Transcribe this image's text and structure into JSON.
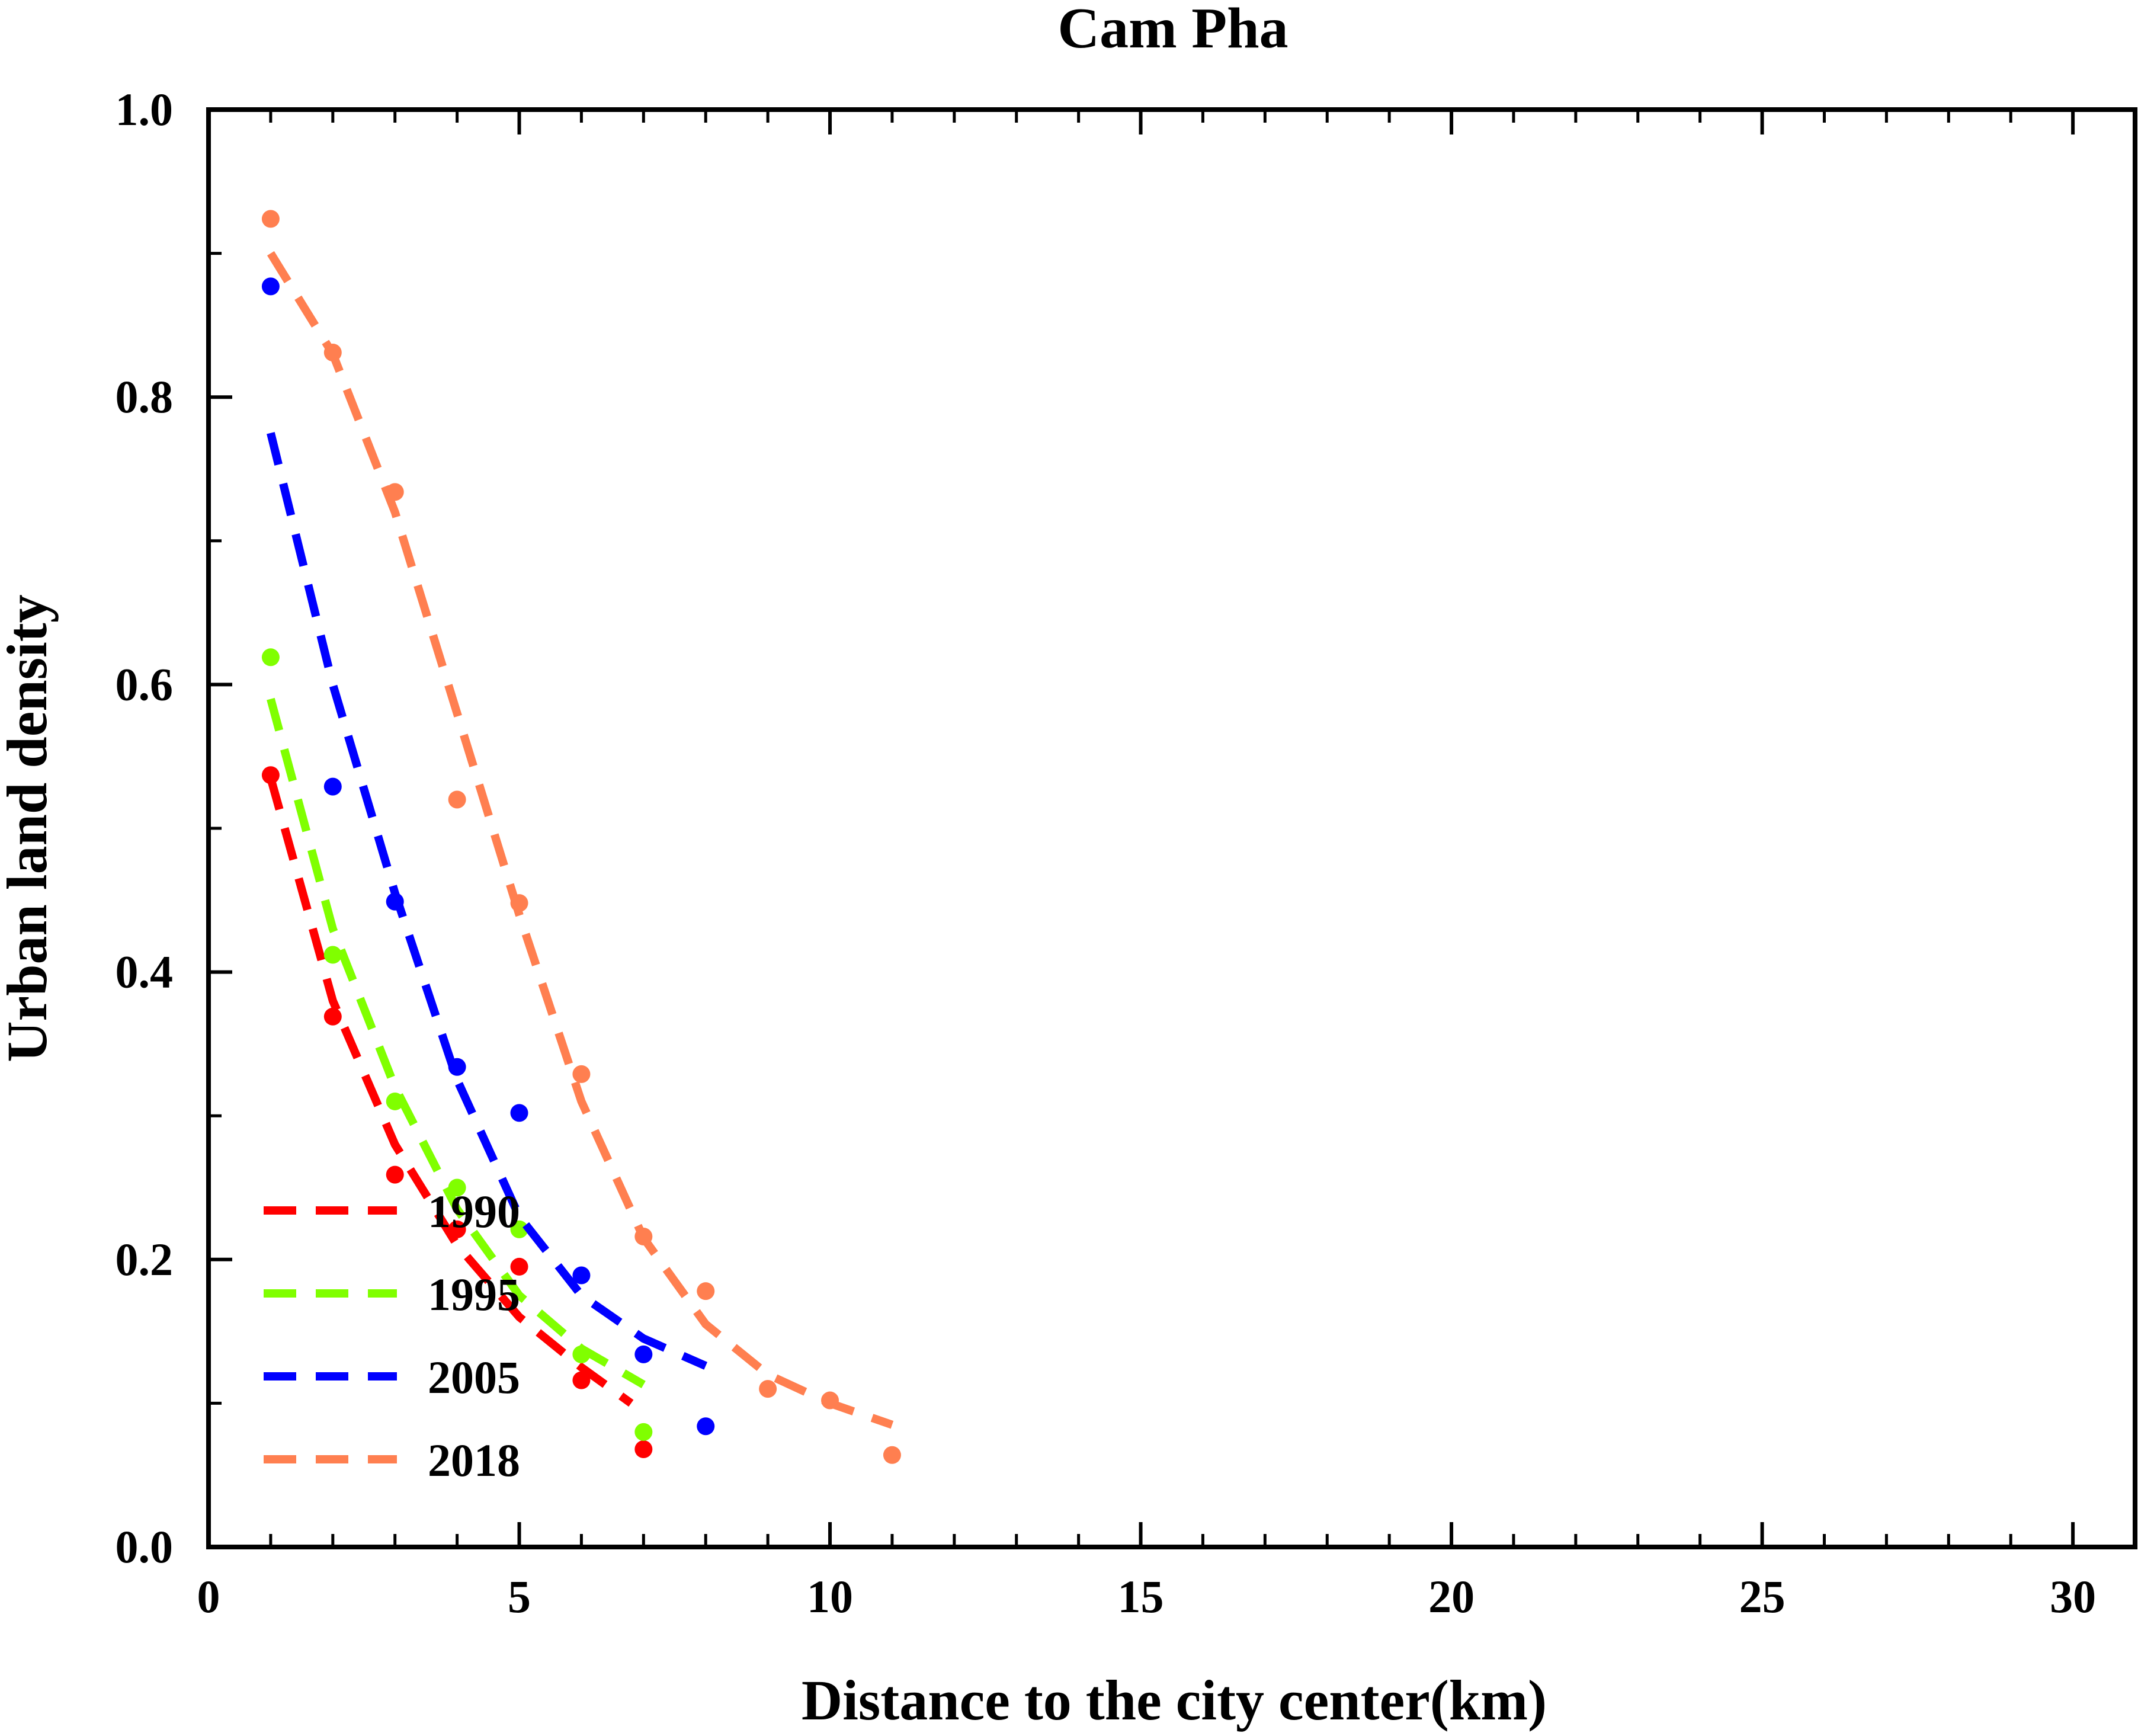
{
  "chart_data": {
    "type": "scatter",
    "title": "Cam Pha",
    "xlabel": "Distance to the city center(km)",
    "ylabel": "Urban land density",
    "xlim": [
      0,
      31
    ],
    "ylim": [
      0.0,
      1.0
    ],
    "xticks": [
      "0",
      "5",
      "10",
      "15",
      "20",
      "25",
      "30"
    ],
    "yticks": [
      "0.0",
      "0.2",
      "0.4",
      "0.6",
      "0.8",
      "1.0"
    ],
    "grid": false,
    "legend_position": "bottom-left",
    "series": [
      {
        "name": "1990",
        "color": "#ff0000",
        "points": {
          "x": [
            1,
            2,
            3,
            4,
            5,
            6,
            7
          ],
          "y": [
            0.537,
            0.369,
            0.259,
            0.221,
            0.195,
            0.116,
            0.068
          ]
        },
        "fit": {
          "x": [
            1,
            2,
            3,
            4,
            5,
            6,
            6.8
          ],
          "y": [
            0.535,
            0.38,
            0.28,
            0.21,
            0.16,
            0.125,
            0.1
          ]
        }
      },
      {
        "name": "1995",
        "color": "#80ff00",
        "points": {
          "x": [
            1,
            2,
            3,
            4,
            5,
            6,
            7
          ],
          "y": [
            0.619,
            0.412,
            0.31,
            0.25,
            0.221,
            0.134,
            0.08
          ]
        },
        "fit": {
          "x": [
            1,
            2,
            3,
            4,
            5,
            6,
            7
          ],
          "y": [
            0.59,
            0.43,
            0.32,
            0.235,
            0.175,
            0.138,
            0.113
          ]
        }
      },
      {
        "name": "2005",
        "color": "#0000ff",
        "points": {
          "x": [
            1,
            2,
            3,
            4,
            5,
            6,
            7,
            8
          ],
          "y": [
            0.877,
            0.529,
            0.449,
            0.334,
            0.302,
            0.189,
            0.134,
            0.084
          ]
        },
        "fit": {
          "x": [
            1,
            2,
            3,
            4,
            5,
            6,
            7,
            8
          ],
          "y": [
            0.775,
            0.6,
            0.455,
            0.325,
            0.23,
            0.175,
            0.145,
            0.126
          ]
        }
      },
      {
        "name": "2018",
        "color": "#ff7f50",
        "points": {
          "x": [
            1,
            2,
            3,
            4,
            5,
            6,
            7,
            8,
            9,
            10,
            11
          ],
          "y": [
            0.924,
            0.831,
            0.734,
            0.52,
            0.448,
            0.329,
            0.216,
            0.178,
            0.11,
            0.102,
            0.064
          ]
        },
        "fit": {
          "x": [
            1,
            2,
            3,
            4,
            5,
            6,
            7,
            8,
            9,
            10,
            11
          ],
          "y": [
            0.9,
            0.83,
            0.72,
            0.58,
            0.44,
            0.31,
            0.215,
            0.155,
            0.12,
            0.1,
            0.085
          ]
        }
      }
    ]
  }
}
